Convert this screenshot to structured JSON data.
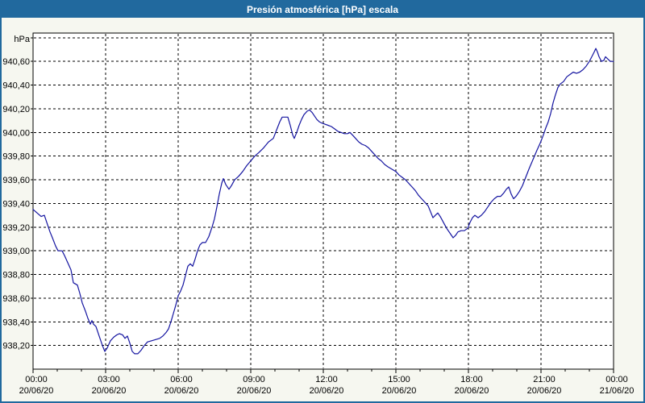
{
  "window": {
    "title": "Presión atmosférica [hPa] escala"
  },
  "colors": {
    "title_bar": "#21699E",
    "window_border": "#21699E",
    "content_bg": "#F6F7F0",
    "plot_bg": "#FFFFFF",
    "line": "#1414A0",
    "grid": "#000000",
    "text": "#000000"
  },
  "chart_data": {
    "type": "line",
    "title": "Presión atmosférica [hPa] escala",
    "xlabel": "",
    "ylabel": "hPa",
    "ylim": [
      938.0,
      940.84
    ],
    "grid": "dashed",
    "legend_position": "none",
    "y_axis": {
      "grid_min": 938.2,
      "grid_max": 940.8,
      "grid_step": 0.2,
      "ticks": [
        {
          "label": "940,60",
          "value": 940.6
        },
        {
          "label": "940,40",
          "value": 940.4
        },
        {
          "label": "940,20",
          "value": 940.2
        },
        {
          "label": "940,00",
          "value": 940.0
        },
        {
          "label": "939,80",
          "value": 939.8
        },
        {
          "label": "939,60",
          "value": 939.6
        },
        {
          "label": "939,40",
          "value": 939.4
        },
        {
          "label": "939,20",
          "value": 939.2
        },
        {
          "label": "939,00",
          "value": 939.0
        },
        {
          "label": "938,80",
          "value": 938.8
        },
        {
          "label": "938,60",
          "value": 938.6
        },
        {
          "label": "938,40",
          "value": 938.4
        },
        {
          "label": "938,20",
          "value": 938.2
        }
      ]
    },
    "x_axis": {
      "range_minutes": [
        0,
        1440
      ],
      "minor_tick_minutes": 60,
      "ticks": [
        {
          "time": "00:00",
          "date": "20/06/20",
          "minutes": 0
        },
        {
          "time": "03:00",
          "date": "20/06/20",
          "minutes": 180
        },
        {
          "time": "06:00",
          "date": "20/06/20",
          "minutes": 360
        },
        {
          "time": "09:00",
          "date": "20/06/20",
          "minutes": 540
        },
        {
          "time": "12:00",
          "date": "20/06/20",
          "minutes": 720
        },
        {
          "time": "15:00",
          "date": "20/06/20",
          "minutes": 900
        },
        {
          "time": "18:00",
          "date": "20/06/20",
          "minutes": 1080
        },
        {
          "time": "21:00",
          "date": "20/06/20",
          "minutes": 1260
        },
        {
          "time": "00:00",
          "date": "21/06/20",
          "minutes": 1440
        }
      ]
    },
    "series": [
      {
        "name": "Presión atmosférica",
        "color": "#1414A0",
        "points": [
          [
            0,
            939.35
          ],
          [
            10,
            939.32
          ],
          [
            20,
            939.29
          ],
          [
            28,
            939.3
          ],
          [
            34,
            939.24
          ],
          [
            42,
            939.16
          ],
          [
            48,
            939.11
          ],
          [
            56,
            939.04
          ],
          [
            62,
            939.0
          ],
          [
            72,
            939.0
          ],
          [
            78,
            938.96
          ],
          [
            86,
            938.9
          ],
          [
            94,
            938.84
          ],
          [
            100,
            938.73
          ],
          [
            110,
            938.71
          ],
          [
            116,
            938.64
          ],
          [
            122,
            938.56
          ],
          [
            130,
            938.49
          ],
          [
            136,
            938.43
          ],
          [
            142,
            938.38
          ],
          [
            146,
            938.41
          ],
          [
            150,
            938.38
          ],
          [
            156,
            938.36
          ],
          [
            164,
            938.28
          ],
          [
            172,
            938.2
          ],
          [
            178,
            938.15
          ],
          [
            184,
            938.18
          ],
          [
            192,
            938.24
          ],
          [
            200,
            938.27
          ],
          [
            208,
            938.29
          ],
          [
            214,
            938.3
          ],
          [
            222,
            938.29
          ],
          [
            228,
            938.26
          ],
          [
            234,
            938.28
          ],
          [
            240,
            938.22
          ],
          [
            246,
            938.15
          ],
          [
            252,
            938.13
          ],
          [
            260,
            938.13
          ],
          [
            268,
            938.16
          ],
          [
            276,
            938.2
          ],
          [
            284,
            938.23
          ],
          [
            294,
            938.24
          ],
          [
            304,
            938.25
          ],
          [
            314,
            938.26
          ],
          [
            322,
            938.28
          ],
          [
            330,
            938.31
          ],
          [
            336,
            938.34
          ],
          [
            342,
            938.4
          ],
          [
            348,
            938.47
          ],
          [
            354,
            938.54
          ],
          [
            360,
            938.62
          ],
          [
            366,
            938.66
          ],
          [
            372,
            938.71
          ],
          [
            378,
            938.79
          ],
          [
            384,
            938.87
          ],
          [
            390,
            938.89
          ],
          [
            396,
            938.87
          ],
          [
            402,
            938.93
          ],
          [
            408,
            939.0
          ],
          [
            414,
            939.05
          ],
          [
            420,
            939.07
          ],
          [
            428,
            939.07
          ],
          [
            436,
            939.12
          ],
          [
            444,
            939.2
          ],
          [
            450,
            939.27
          ],
          [
            456,
            939.37
          ],
          [
            462,
            939.48
          ],
          [
            468,
            939.57
          ],
          [
            472,
            939.61
          ],
          [
            478,
            939.56
          ],
          [
            486,
            939.52
          ],
          [
            492,
            939.55
          ],
          [
            500,
            939.6
          ],
          [
            510,
            939.63
          ],
          [
            520,
            939.67
          ],
          [
            530,
            939.72
          ],
          [
            540,
            939.76
          ],
          [
            550,
            939.8
          ],
          [
            560,
            939.83
          ],
          [
            572,
            939.87
          ],
          [
            584,
            939.92
          ],
          [
            596,
            939.95
          ],
          [
            604,
            940.02
          ],
          [
            612,
            940.09
          ],
          [
            618,
            940.13
          ],
          [
            626,
            940.13
          ],
          [
            632,
            940.13
          ],
          [
            638,
            940.06
          ],
          [
            644,
            939.98
          ],
          [
            648,
            939.95
          ],
          [
            654,
            940.0
          ],
          [
            660,
            940.06
          ],
          [
            666,
            940.11
          ],
          [
            672,
            940.15
          ],
          [
            680,
            940.18
          ],
          [
            686,
            940.19
          ],
          [
            692,
            940.17
          ],
          [
            698,
            940.14
          ],
          [
            704,
            940.11
          ],
          [
            710,
            940.09
          ],
          [
            716,
            940.08
          ],
          [
            724,
            940.07
          ],
          [
            732,
            940.06
          ],
          [
            740,
            940.05
          ],
          [
            748,
            940.03
          ],
          [
            756,
            940.01
          ],
          [
            764,
            940.0
          ],
          [
            772,
            939.99
          ],
          [
            780,
            939.99
          ],
          [
            786,
            940.0
          ],
          [
            792,
            939.98
          ],
          [
            800,
            939.95
          ],
          [
            808,
            939.92
          ],
          [
            816,
            939.9
          ],
          [
            824,
            939.89
          ],
          [
            832,
            939.87
          ],
          [
            840,
            939.84
          ],
          [
            848,
            939.81
          ],
          [
            856,
            939.78
          ],
          [
            864,
            939.76
          ],
          [
            872,
            939.73
          ],
          [
            880,
            939.71
          ],
          [
            890,
            939.69
          ],
          [
            900,
            939.67
          ],
          [
            908,
            939.64
          ],
          [
            916,
            939.62
          ],
          [
            924,
            939.6
          ],
          [
            932,
            939.57
          ],
          [
            940,
            939.54
          ],
          [
            948,
            939.51
          ],
          [
            956,
            939.47
          ],
          [
            964,
            939.44
          ],
          [
            972,
            939.41
          ],
          [
            980,
            939.38
          ],
          [
            986,
            939.33
          ],
          [
            992,
            939.28
          ],
          [
            998,
            939.3
          ],
          [
            1004,
            939.32
          ],
          [
            1010,
            939.29
          ],
          [
            1018,
            939.24
          ],
          [
            1026,
            939.19
          ],
          [
            1034,
            939.15
          ],
          [
            1042,
            939.11
          ],
          [
            1048,
            939.13
          ],
          [
            1054,
            939.16
          ],
          [
            1062,
            939.17
          ],
          [
            1070,
            939.17
          ],
          [
            1078,
            939.19
          ],
          [
            1084,
            939.24
          ],
          [
            1090,
            939.28
          ],
          [
            1096,
            939.3
          ],
          [
            1104,
            939.28
          ],
          [
            1112,
            939.3
          ],
          [
            1120,
            939.33
          ],
          [
            1128,
            939.37
          ],
          [
            1136,
            939.41
          ],
          [
            1144,
            939.44
          ],
          [
            1152,
            939.46
          ],
          [
            1160,
            939.46
          ],
          [
            1168,
            939.49
          ],
          [
            1174,
            939.52
          ],
          [
            1180,
            939.54
          ],
          [
            1186,
            939.48
          ],
          [
            1192,
            939.44
          ],
          [
            1198,
            939.46
          ],
          [
            1206,
            939.5
          ],
          [
            1214,
            939.55
          ],
          [
            1222,
            939.62
          ],
          [
            1230,
            939.69
          ],
          [
            1240,
            939.77
          ],
          [
            1250,
            939.85
          ],
          [
            1258,
            939.91
          ],
          [
            1266,
            939.98
          ],
          [
            1272,
            940.04
          ],
          [
            1278,
            940.09
          ],
          [
            1284,
            940.16
          ],
          [
            1290,
            940.25
          ],
          [
            1296,
            940.32
          ],
          [
            1302,
            940.38
          ],
          [
            1308,
            940.41
          ],
          [
            1316,
            940.43
          ],
          [
            1324,
            940.47
          ],
          [
            1332,
            940.49
          ],
          [
            1340,
            940.51
          ],
          [
            1348,
            940.5
          ],
          [
            1356,
            940.51
          ],
          [
            1364,
            940.53
          ],
          [
            1372,
            940.56
          ],
          [
            1380,
            940.6
          ],
          [
            1386,
            940.64
          ],
          [
            1392,
            940.68
          ],
          [
            1396,
            940.71
          ],
          [
            1400,
            940.68
          ],
          [
            1404,
            940.64
          ],
          [
            1410,
            940.6
          ],
          [
            1416,
            940.61
          ],
          [
            1420,
            940.64
          ],
          [
            1426,
            940.62
          ],
          [
            1432,
            940.6
          ],
          [
            1440,
            940.6
          ]
        ]
      }
    ]
  }
}
